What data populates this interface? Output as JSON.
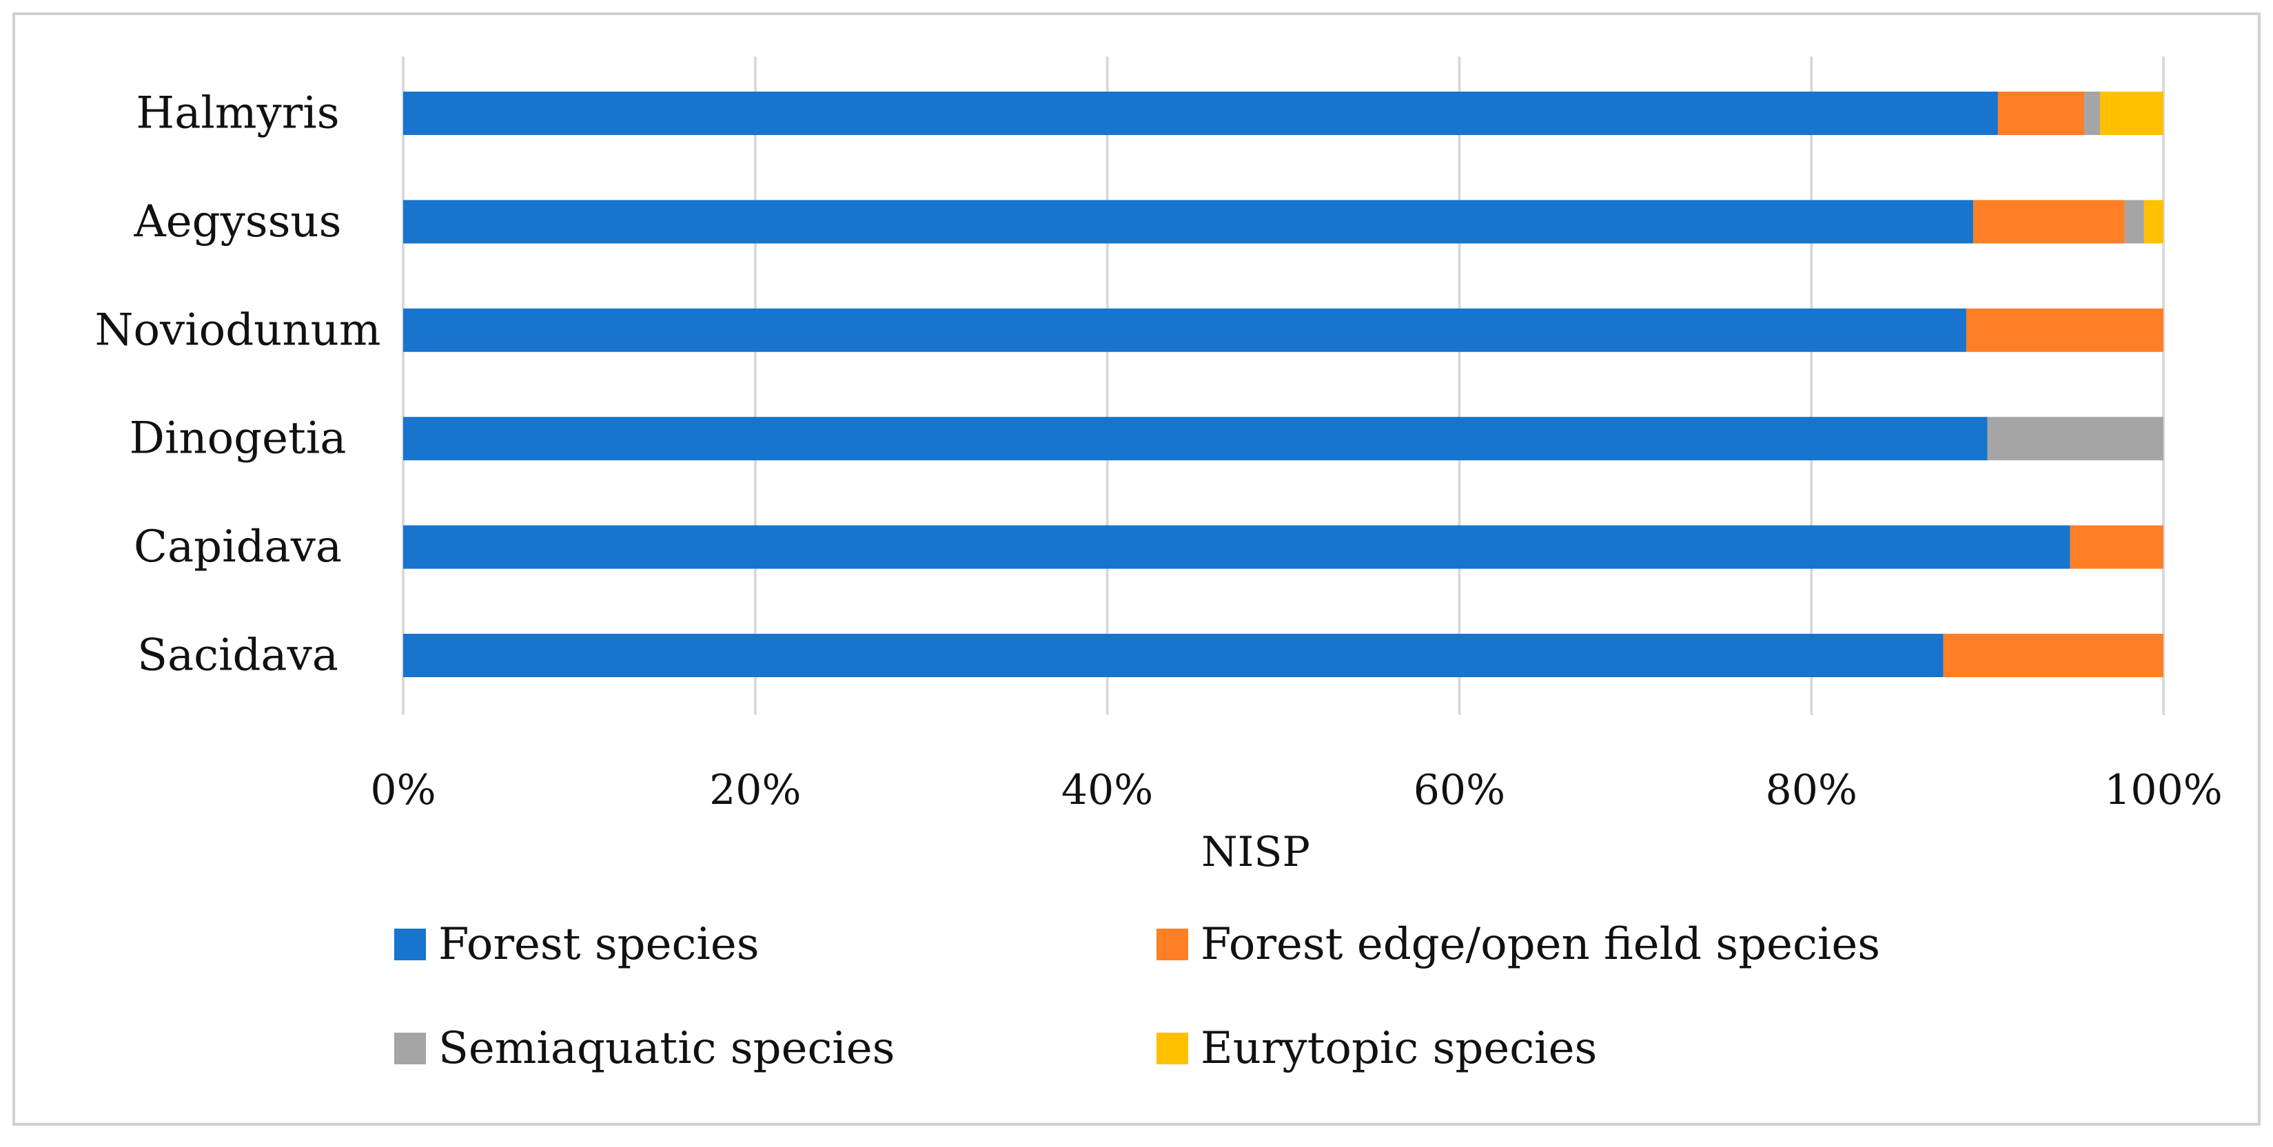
{
  "chart_data": {
    "type": "bar",
    "orientation": "horizontal",
    "stacked": true,
    "normalized": true,
    "categories": [
      "Halmyris",
      "Aegyssus",
      "Noviodunum",
      "Dinogetia",
      "Capidava",
      "Sacidava"
    ],
    "series": [
      {
        "name": "Forest species",
        "color": "#1874CD",
        "values": [
          90.6,
          89.2,
          88.8,
          90.0,
          94.7,
          87.5
        ]
      },
      {
        "name": "Forest edge/open field species",
        "color": "#FF7F27",
        "values": [
          4.9,
          8.6,
          11.2,
          0.0,
          5.3,
          12.5
        ]
      },
      {
        "name": "Semiaquatic species",
        "color": "#A5A5A5",
        "values": [
          0.9,
          1.1,
          0.0,
          10.0,
          0.0,
          0.0
        ]
      },
      {
        "name": "Eurytopic species",
        "color": "#FFC000",
        "values": [
          3.6,
          1.1,
          0.0,
          0.0,
          0.0,
          0.0
        ]
      }
    ],
    "xlabel": "NISP",
    "ylabel": "",
    "xlim": [
      0,
      100
    ],
    "xticks": [
      "0%",
      "20%",
      "40%",
      "60%",
      "80%",
      "100%"
    ],
    "grid": "vertical",
    "legend": "bottom"
  }
}
